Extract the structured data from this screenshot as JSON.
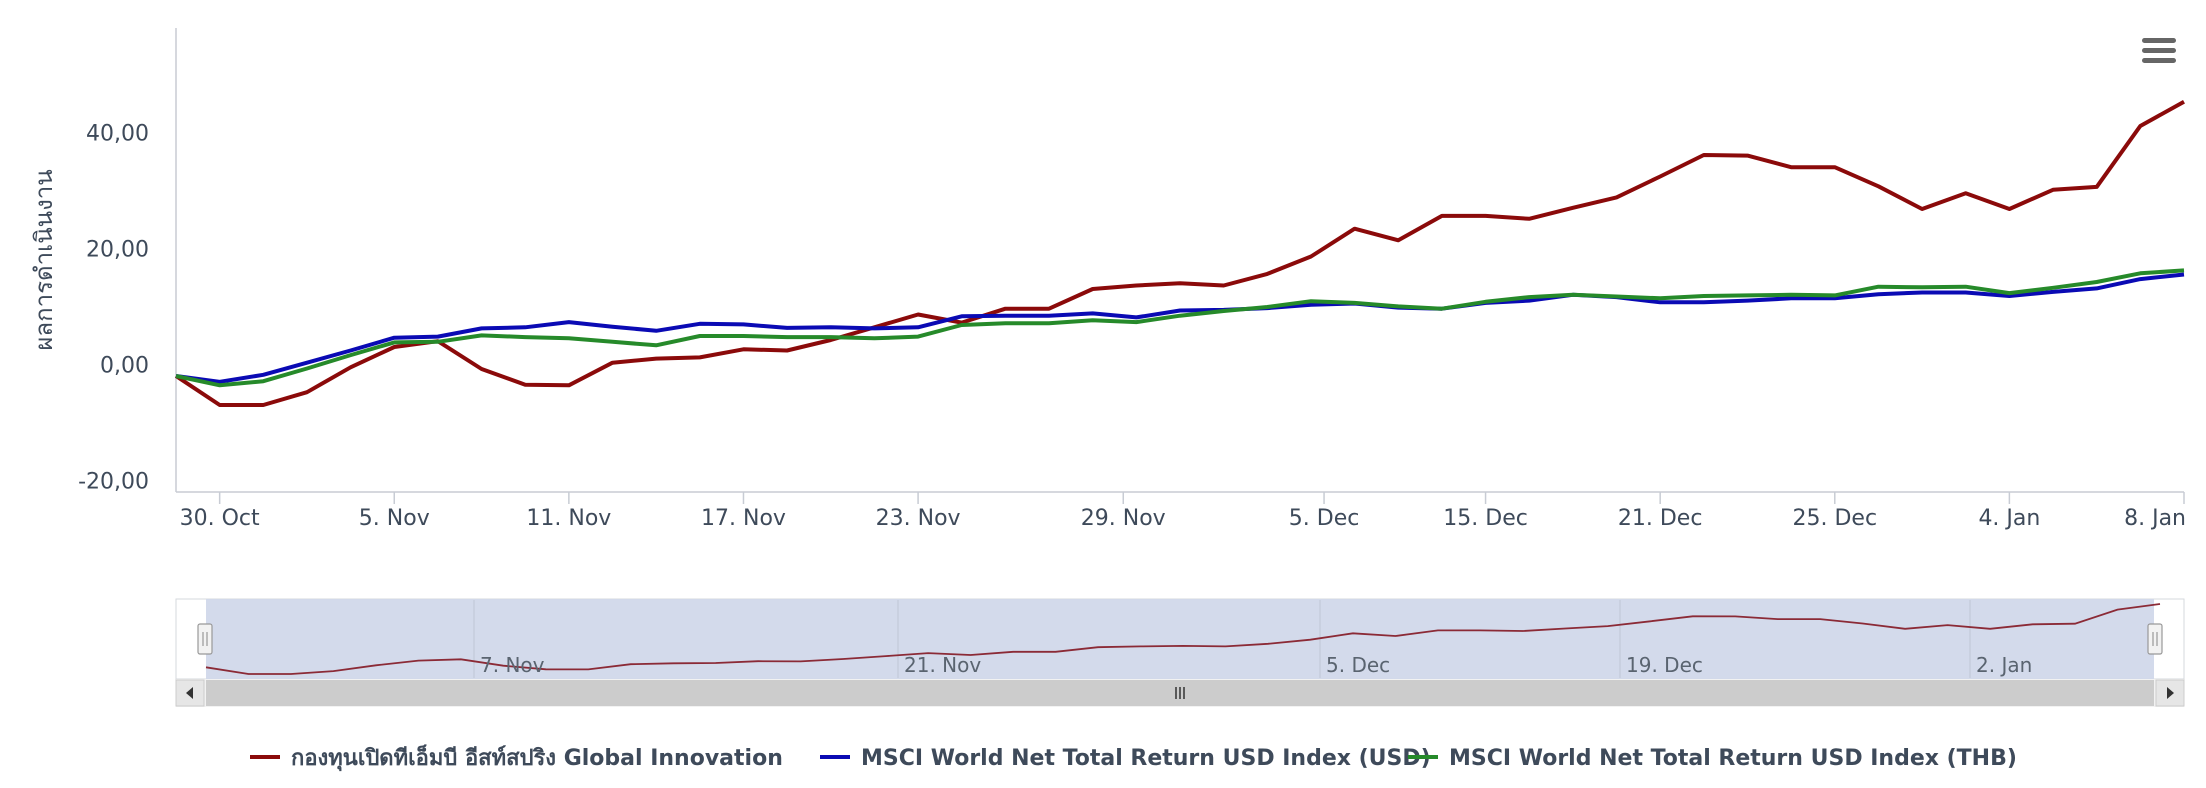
{
  "chart_data": {
    "type": "line",
    "ylabel": "ผลการดำเนินงาน",
    "ylim": [
      -22,
      58
    ],
    "yticks": [
      {
        "value": 40,
        "label": "40,00"
      },
      {
        "value": 20,
        "label": "20,00"
      },
      {
        "value": 0,
        "label": "0,00"
      },
      {
        "value": -20,
        "label": "-20,00"
      }
    ],
    "x_range": [
      0,
      46
    ],
    "xticks": [
      {
        "pos": 1,
        "label": "30. Oct"
      },
      {
        "pos": 5,
        "label": "5. Nov"
      },
      {
        "pos": 9,
        "label": "11. Nov"
      },
      {
        "pos": 13,
        "label": "17. Nov"
      },
      {
        "pos": 17,
        "label": "23. Nov"
      },
      {
        "pos": 21.7,
        "label": "29. Nov"
      },
      {
        "pos": 26.3,
        "label": "5. Dec"
      },
      {
        "pos": 30,
        "label": "15. Dec"
      },
      {
        "pos": 34,
        "label": "21. Dec"
      },
      {
        "pos": 38,
        "label": "25. Dec"
      },
      {
        "pos": 42,
        "label": "4. Jan"
      },
      {
        "pos": 46,
        "label": "8. Jan"
      }
    ],
    "series": [
      {
        "name": "กองทุนเปิดทีเอ็มบี อีสท์สปริง Global Innovation",
        "color": "#8b0a0a",
        "values": [
          -2,
          -7,
          -7,
          -4.8,
          -0.5,
          3,
          4,
          -0.8,
          -3.5,
          -3.6,
          0.3,
          1,
          1.2,
          2.6,
          2.4,
          4.2,
          6.4,
          8.6,
          7.2,
          9.6,
          9.6,
          13,
          13.6,
          14,
          13.6,
          15.6,
          18.6,
          23.4,
          21.4,
          25.6,
          25.6,
          25.1,
          27,
          28.8,
          32.4,
          36.1,
          36,
          34,
          34,
          30.7,
          26.8,
          29.5,
          26.8,
          30.1,
          30.6,
          41.1,
          45.3
        ]
      },
      {
        "name": "MSCI World Net Total Return USD Index (USD)",
        "color": "#0a0ab4",
        "values": [
          -2,
          -3,
          -1.8,
          0.3,
          2.4,
          4.6,
          4.8,
          6.2,
          6.4,
          7.3,
          6.5,
          5.8,
          7,
          6.9,
          6.3,
          6.4,
          6.2,
          6.4,
          8.3,
          8.4,
          8.4,
          8.8,
          8.1,
          9.3,
          9.4,
          9.7,
          10.3,
          10.5,
          9.8,
          9.6,
          10.6,
          11,
          12,
          11.6,
          10.7,
          10.7,
          11,
          11.4,
          11.4,
          12.1,
          12.4,
          12.4,
          11.8,
          12.5,
          13.1,
          14.7,
          15.5
        ]
      },
      {
        "name": "MSCI World Net Total Return USD Index (THB)",
        "color": "#268a2a",
        "values": [
          -2,
          -3.6,
          -2.9,
          -0.7,
          1.6,
          3.8,
          3.9,
          5,
          4.7,
          4.5,
          3.9,
          3.3,
          4.9,
          4.9,
          4.7,
          4.7,
          4.5,
          4.8,
          6.8,
          7.1,
          7.1,
          7.6,
          7.3,
          8.4,
          9.2,
          9.9,
          10.9,
          10.6,
          10,
          9.6,
          10.8,
          11.6,
          12,
          11.7,
          11.4,
          11.8,
          11.9,
          12,
          11.9,
          13.4,
          13.3,
          13.4,
          12.3,
          13.2,
          14.2,
          15.7,
          16.2
        ]
      }
    ],
    "navigator": {
      "labels": [
        "7. Nov",
        "21. Nov",
        "5. Dec",
        "19. Dec",
        "2. Jan"
      ]
    }
  }
}
